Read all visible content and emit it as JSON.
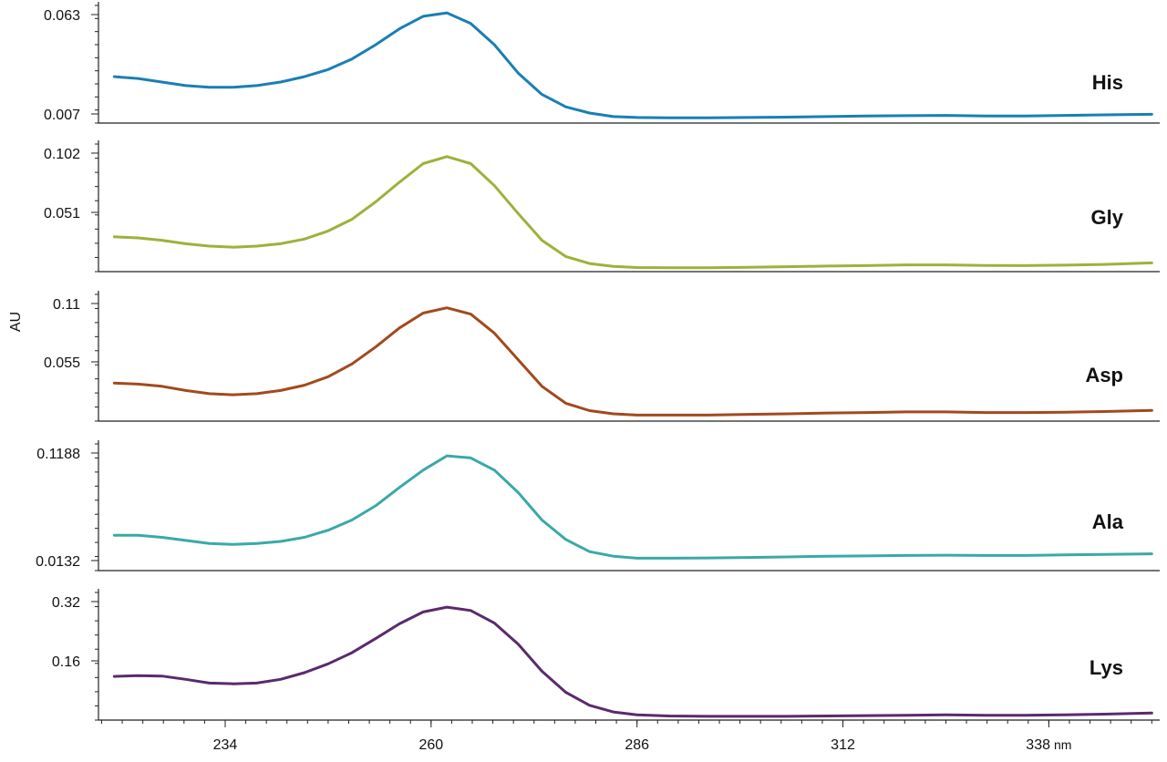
{
  "chart_data": {
    "type": "line",
    "ylabel": "AU",
    "x_unit": "nm",
    "xlim": [
      218,
      352
    ],
    "x_ticks": [
      234,
      260,
      286,
      312,
      338
    ],
    "x_minor_step": 2.6,
    "x": [
      220,
      223,
      226,
      229,
      232,
      235,
      238,
      241,
      244,
      247,
      250,
      253,
      256,
      259,
      262,
      265,
      268,
      271,
      274,
      277,
      280,
      283,
      286,
      290,
      295,
      300,
      305,
      310,
      315,
      320,
      325,
      330,
      335,
      340,
      345,
      351
    ],
    "series": [
      {
        "name": "His",
        "color": "#1a7fb3",
        "ylim": [
          0.007,
          0.063
        ],
        "y_ticks": [
          0.063,
          0.007
        ],
        "values": [
          0.028,
          0.027,
          0.025,
          0.023,
          0.022,
          0.022,
          0.023,
          0.025,
          0.028,
          0.032,
          0.038,
          0.046,
          0.055,
          0.062,
          0.064,
          0.058,
          0.046,
          0.03,
          0.018,
          0.011,
          0.0075,
          0.0055,
          0.005,
          0.0048,
          0.0048,
          0.005,
          0.0052,
          0.0055,
          0.0058,
          0.006,
          0.0062,
          0.0058,
          0.0058,
          0.0062,
          0.0065,
          0.0068
        ]
      },
      {
        "name": "Gly",
        "color": "#9cb23a",
        "ylim": [
          0.0,
          0.102
        ],
        "y_ticks": [
          0.102,
          0.051
        ],
        "values": [
          0.03,
          0.029,
          0.027,
          0.024,
          0.022,
          0.021,
          0.022,
          0.024,
          0.028,
          0.035,
          0.045,
          0.06,
          0.077,
          0.093,
          0.099,
          0.093,
          0.074,
          0.05,
          0.027,
          0.013,
          0.007,
          0.0045,
          0.0035,
          0.0033,
          0.0033,
          0.0038,
          0.0042,
          0.0048,
          0.0052,
          0.0058,
          0.0058,
          0.0053,
          0.0052,
          0.0056,
          0.0062,
          0.0075
        ]
      },
      {
        "name": "Asp",
        "color": "#a24a1e",
        "ylim": [
          0.0,
          0.11
        ],
        "y_ticks": [
          0.11,
          0.055
        ],
        "values": [
          0.035,
          0.034,
          0.032,
          0.028,
          0.025,
          0.024,
          0.025,
          0.028,
          0.033,
          0.041,
          0.053,
          0.069,
          0.087,
          0.101,
          0.106,
          0.1,
          0.082,
          0.057,
          0.032,
          0.016,
          0.009,
          0.006,
          0.0048,
          0.0048,
          0.0048,
          0.0055,
          0.006,
          0.0068,
          0.0072,
          0.0078,
          0.0078,
          0.0072,
          0.0072,
          0.0075,
          0.0082,
          0.0092
        ]
      },
      {
        "name": "Ala",
        "color": "#3aa9a8",
        "ylim": [
          0.0,
          0.1188
        ],
        "y_ticks": [
          0.1188,
          0.0132
        ],
        "values": [
          0.038,
          0.038,
          0.036,
          0.033,
          0.03,
          0.029,
          0.03,
          0.032,
          0.036,
          0.043,
          0.053,
          0.067,
          0.085,
          0.102,
          0.116,
          0.114,
          0.102,
          0.08,
          0.053,
          0.034,
          0.022,
          0.0175,
          0.0155,
          0.0155,
          0.0158,
          0.0162,
          0.0168,
          0.0175,
          0.0178,
          0.0182,
          0.0185,
          0.0182,
          0.0182,
          0.0188,
          0.0192,
          0.0198
        ]
      },
      {
        "name": "Lys",
        "color": "#5b2a6d",
        "ylim": [
          0.0,
          0.32
        ],
        "y_ticks": [
          0.32,
          0.16
        ],
        "values": [
          0.118,
          0.12,
          0.119,
          0.11,
          0.1,
          0.098,
          0.1,
          0.11,
          0.128,
          0.152,
          0.182,
          0.22,
          0.26,
          0.292,
          0.305,
          0.296,
          0.262,
          0.205,
          0.132,
          0.075,
          0.04,
          0.022,
          0.014,
          0.011,
          0.01,
          0.01,
          0.01,
          0.011,
          0.012,
          0.013,
          0.014,
          0.013,
          0.013,
          0.014,
          0.016,
          0.019
        ]
      }
    ]
  }
}
